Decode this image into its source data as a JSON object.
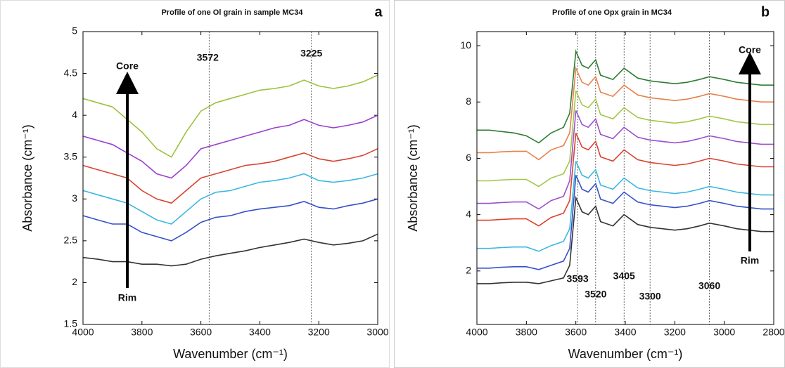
{
  "chart_data": [
    {
      "type": "line",
      "title": "Profile of one Ol grain in sample MC34",
      "panel_label": "a",
      "x_label": "Wavenumber (cm⁻¹)",
      "y_label": "Absorbance (cm⁻¹)",
      "xlim": [
        4000,
        3000
      ],
      "xticks": [
        4000,
        3800,
        3600,
        3400,
        3200,
        3000
      ],
      "ylim": [
        1.5,
        5
      ],
      "yticks": [
        1.5,
        2,
        2.5,
        3,
        3.5,
        4,
        4.5,
        5
      ],
      "vlines": [
        3572,
        3225
      ],
      "annotations": [
        "Core",
        "Rim"
      ],
      "x": [
        4000,
        3950,
        3900,
        3850,
        3800,
        3750,
        3700,
        3650,
        3600,
        3550,
        3500,
        3450,
        3400,
        3350,
        3300,
        3250,
        3200,
        3150,
        3100,
        3050,
        3000
      ],
      "series": [
        {
          "color": "#9cc23c",
          "values": [
            4.2,
            4.15,
            4.1,
            3.95,
            3.8,
            3.6,
            3.5,
            3.8,
            4.05,
            4.15,
            4.2,
            4.25,
            4.3,
            4.32,
            4.35,
            4.42,
            4.35,
            4.32,
            4.35,
            4.4,
            4.48
          ]
        },
        {
          "color": "#9b3fcf",
          "values": [
            3.75,
            3.7,
            3.65,
            3.55,
            3.45,
            3.3,
            3.25,
            3.4,
            3.6,
            3.65,
            3.7,
            3.75,
            3.8,
            3.85,
            3.88,
            3.95,
            3.88,
            3.85,
            3.88,
            3.92,
            4.0
          ]
        },
        {
          "color": "#d9432f",
          "values": [
            3.4,
            3.35,
            3.3,
            3.25,
            3.1,
            3.0,
            2.95,
            3.1,
            3.25,
            3.3,
            3.35,
            3.4,
            3.42,
            3.45,
            3.5,
            3.55,
            3.48,
            3.45,
            3.48,
            3.52,
            3.6
          ]
        },
        {
          "color": "#3bb7e0",
          "values": [
            3.1,
            3.05,
            3.0,
            2.95,
            2.85,
            2.75,
            2.7,
            2.85,
            3.0,
            3.08,
            3.1,
            3.15,
            3.2,
            3.22,
            3.25,
            3.3,
            3.22,
            3.2,
            3.22,
            3.25,
            3.3
          ]
        },
        {
          "color": "#3550c9",
          "values": [
            2.8,
            2.75,
            2.7,
            2.7,
            2.6,
            2.55,
            2.5,
            2.6,
            2.72,
            2.78,
            2.8,
            2.85,
            2.88,
            2.9,
            2.92,
            2.97,
            2.9,
            2.88,
            2.92,
            2.95,
            3.0
          ]
        },
        {
          "color": "#333333",
          "values": [
            2.3,
            2.28,
            2.25,
            2.25,
            2.22,
            2.22,
            2.2,
            2.22,
            2.28,
            2.32,
            2.35,
            2.38,
            2.42,
            2.45,
            2.48,
            2.52,
            2.48,
            2.45,
            2.47,
            2.5,
            2.58
          ]
        }
      ]
    },
    {
      "type": "line",
      "title": "Profile of one Opx grain in MC34",
      "panel_label": "b",
      "x_label": "Wavenumber (cm⁻¹)",
      "y_label": "Absorbance (cm⁻¹)",
      "xlim": [
        4000,
        2800
      ],
      "xticks": [
        4000,
        3800,
        3600,
        3400,
        3200,
        3000,
        2800
      ],
      "ylim": [
        0.1,
        10.5
      ],
      "yticks": [
        2,
        4,
        6,
        8,
        10
      ],
      "vlines": [
        3593,
        3520,
        3405,
        3300,
        3060
      ],
      "annotations": [
        "Core",
        "Rim"
      ],
      "x": [
        4000,
        3950,
        3900,
        3850,
        3800,
        3750,
        3700,
        3650,
        3625,
        3600,
        3575,
        3550,
        3520,
        3500,
        3450,
        3405,
        3350,
        3300,
        3250,
        3200,
        3150,
        3100,
        3060,
        3000,
        2950,
        2900,
        2850,
        2800
      ],
      "series": [
        {
          "color": "#2e7d32",
          "values": [
            7.0,
            7.0,
            6.95,
            6.9,
            6.8,
            6.55,
            6.9,
            7.1,
            7.6,
            9.8,
            9.3,
            9.2,
            9.5,
            8.95,
            8.8,
            9.2,
            8.85,
            8.75,
            8.7,
            8.65,
            8.7,
            8.8,
            8.9,
            8.8,
            8.7,
            8.65,
            8.6,
            8.6
          ]
        },
        {
          "color": "#e8804a",
          "values": [
            6.2,
            6.2,
            6.23,
            6.25,
            6.25,
            5.95,
            6.3,
            6.45,
            6.9,
            9.2,
            8.7,
            8.6,
            8.9,
            8.35,
            8.2,
            8.6,
            8.25,
            8.15,
            8.1,
            8.05,
            8.1,
            8.2,
            8.3,
            8.2,
            8.1,
            8.05,
            8.0,
            8.0
          ]
        },
        {
          "color": "#a5c64a",
          "values": [
            5.2,
            5.2,
            5.23,
            5.25,
            5.25,
            5.0,
            5.3,
            5.45,
            5.9,
            8.4,
            7.9,
            7.8,
            8.1,
            7.55,
            7.4,
            7.8,
            7.45,
            7.35,
            7.3,
            7.25,
            7.3,
            7.4,
            7.5,
            7.4,
            7.3,
            7.25,
            7.2,
            7.2
          ]
        },
        {
          "color": "#9b4fcf",
          "values": [
            4.4,
            4.4,
            4.43,
            4.45,
            4.45,
            4.2,
            4.5,
            4.65,
            5.2,
            7.7,
            7.2,
            7.1,
            7.4,
            6.85,
            6.7,
            7.1,
            6.75,
            6.65,
            6.6,
            6.55,
            6.6,
            6.7,
            6.8,
            6.7,
            6.6,
            6.55,
            6.5,
            6.5
          ]
        },
        {
          "color": "#d9432f",
          "values": [
            3.8,
            3.8,
            3.83,
            3.85,
            3.85,
            3.6,
            3.9,
            4.05,
            4.5,
            6.9,
            6.4,
            6.3,
            6.6,
            6.05,
            5.9,
            6.3,
            5.95,
            5.85,
            5.8,
            5.75,
            5.8,
            5.9,
            6.0,
            5.9,
            5.8,
            5.75,
            5.7,
            5.7
          ]
        },
        {
          "color": "#3bb7e0",
          "values": [
            2.8,
            2.8,
            2.83,
            2.85,
            2.85,
            2.7,
            2.9,
            3.05,
            3.5,
            5.9,
            5.4,
            5.3,
            5.6,
            5.05,
            4.9,
            5.3,
            4.95,
            4.85,
            4.8,
            4.75,
            4.8,
            4.9,
            5.0,
            4.9,
            4.8,
            4.75,
            4.7,
            4.7
          ]
        },
        {
          "color": "#3550c9",
          "values": [
            2.1,
            2.1,
            2.13,
            2.15,
            2.15,
            2.05,
            2.2,
            2.35,
            2.8,
            5.4,
            4.9,
            4.8,
            5.1,
            4.55,
            4.4,
            4.8,
            4.45,
            4.35,
            4.3,
            4.25,
            4.3,
            4.4,
            4.5,
            4.4,
            4.3,
            4.25,
            4.2,
            4.2
          ]
        },
        {
          "color": "#333333",
          "values": [
            1.55,
            1.55,
            1.58,
            1.6,
            1.6,
            1.55,
            1.65,
            1.75,
            2.2,
            4.6,
            4.1,
            4.0,
            4.3,
            3.75,
            3.6,
            4.0,
            3.65,
            3.55,
            3.5,
            3.45,
            3.5,
            3.6,
            3.7,
            3.6,
            3.5,
            3.45,
            3.4,
            3.4
          ]
        }
      ]
    }
  ]
}
